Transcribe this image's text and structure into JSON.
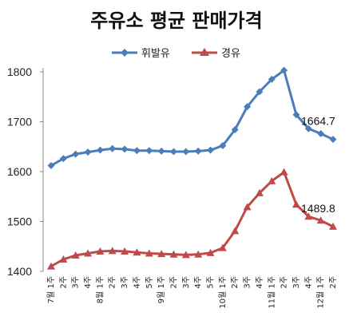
{
  "chart_data": {
    "type": "line",
    "title": "주유소 평균 판매가격",
    "xlabel": "",
    "ylabel": "",
    "ylim": [
      1400,
      1800
    ],
    "yticks": [
      1400,
      1500,
      1600,
      1700,
      1800
    ],
    "grid": false,
    "legend_placement": "top",
    "categories": [
      "7월 1주",
      "2주",
      "3주",
      "4주",
      "8월 1주",
      "2주",
      "3주",
      "4주",
      "5주",
      "9월 1주",
      "2주",
      "3주",
      "4주",
      "5주",
      "10월 1주",
      "2주",
      "3주",
      "4주",
      "11월 1주",
      "2주",
      "3주",
      "4주",
      "12월 1주",
      "2주"
    ],
    "series": [
      {
        "name": "휘발유",
        "color": "#4a7ebb",
        "marker": "diamond",
        "values": [
          1612,
          1626,
          1635,
          1639,
          1643,
          1646,
          1645,
          1642,
          1642,
          1641,
          1640,
          1640,
          1641,
          1643,
          1652,
          1684,
          1730,
          1760,
          1785,
          1803,
          1714,
          1686,
          1676,
          1664.7
        ]
      },
      {
        "name": "경유",
        "color": "#be4b48",
        "marker": "triangle",
        "values": [
          1410,
          1424,
          1432,
          1436,
          1440,
          1441,
          1440,
          1438,
          1436,
          1435,
          1434,
          1433,
          1434,
          1437,
          1447,
          1481,
          1529,
          1557,
          1581,
          1599,
          1534,
          1510,
          1502,
          1489.8
        ]
      }
    ],
    "annotations": [
      {
        "series": "휘발유",
        "index": 23,
        "text": "1664.7"
      },
      {
        "series": "경유",
        "index": 23,
        "text": "1489.8"
      }
    ]
  }
}
